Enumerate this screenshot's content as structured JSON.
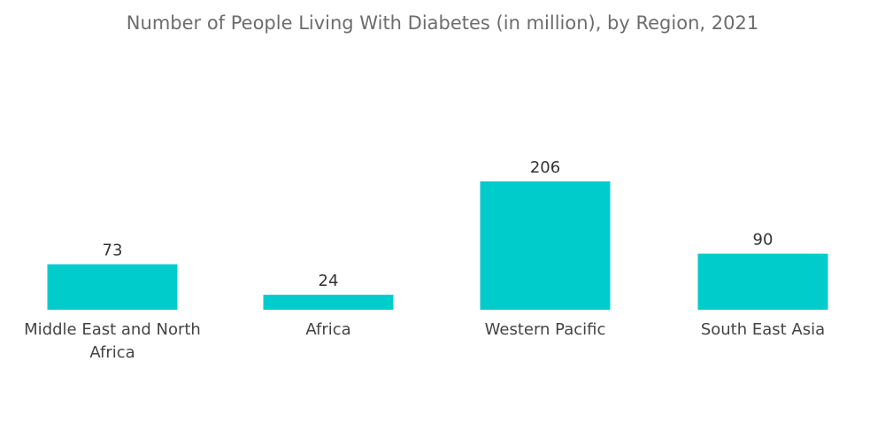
{
  "chart_data": {
    "type": "bar",
    "title": "Number of People Living With Diabetes (in million), by Region, 2021",
    "categories": [
      [
        "Middle East and North",
        "Africa"
      ],
      [
        "Africa"
      ],
      [
        "Western Pacific"
      ],
      [
        "South East Asia"
      ]
    ],
    "values": [
      73,
      24,
      206,
      90
    ],
    "xlabel": "",
    "ylabel": "",
    "ylim": [
      0,
      206
    ],
    "grid": false,
    "legend": "none",
    "bar_color": "#00cccc"
  }
}
